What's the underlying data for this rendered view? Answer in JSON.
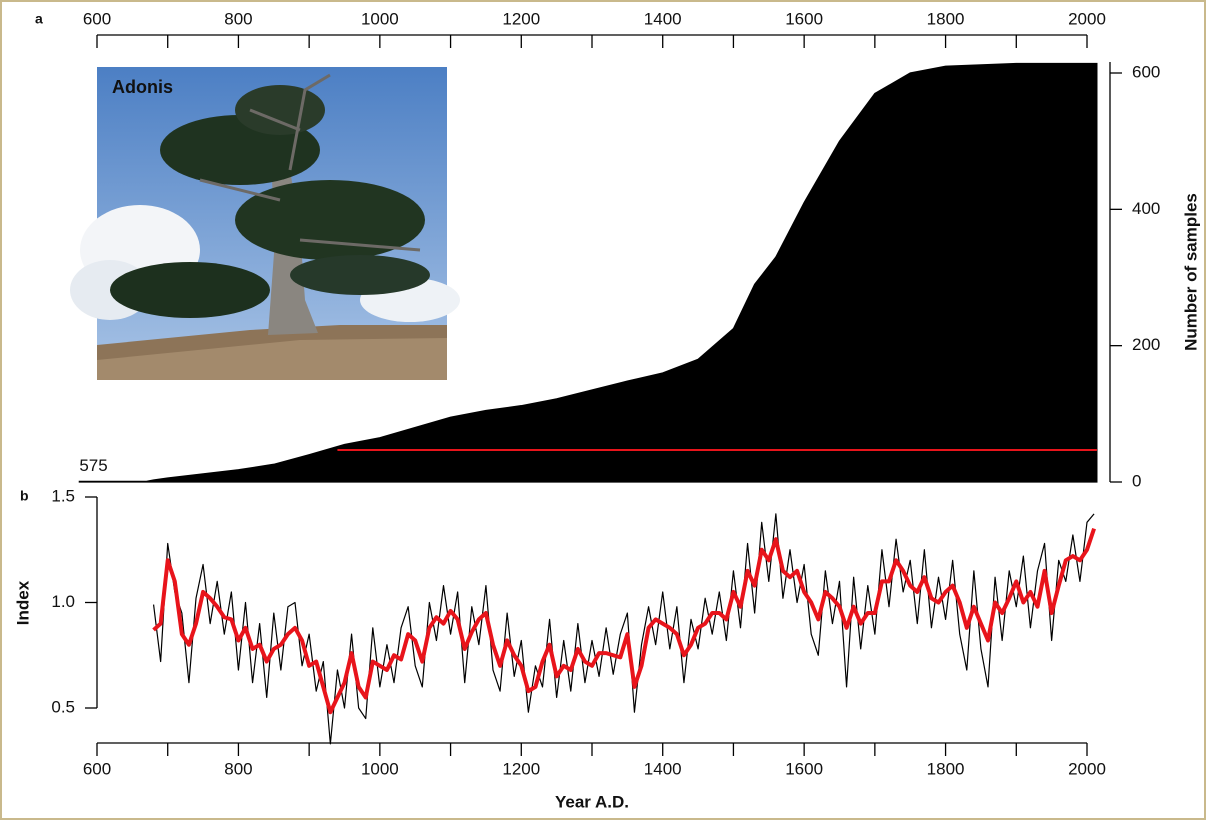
{
  "chart_data": [
    {
      "type": "area",
      "label": "a",
      "ylabel": "Number of samples",
      "color": "#000000",
      "xlim": [
        600,
        2000
      ],
      "xticks": [
        600,
        800,
        1000,
        1200,
        1400,
        1600,
        1800,
        2000
      ],
      "xminorticks": [
        700,
        900,
        1100,
        1300,
        1500,
        1700,
        1900
      ],
      "ylim": [
        0,
        600
      ],
      "yticks": [
        0,
        200,
        400,
        600
      ],
      "x": [
        575,
        670,
        680,
        700,
        750,
        800,
        850,
        900,
        950,
        1000,
        1050,
        1100,
        1150,
        1200,
        1250,
        1300,
        1350,
        1400,
        1450,
        1500,
        1530,
        1560,
        1600,
        1650,
        1700,
        1750,
        1800,
        1900,
        2014
      ],
      "values": [
        1,
        1,
        3,
        6,
        12,
        18,
        26,
        40,
        55,
        65,
        80,
        95,
        105,
        112,
        122,
        135,
        148,
        160,
        180,
        225,
        290,
        330,
        410,
        500,
        570,
        600,
        610,
        614,
        614
      ],
      "highlight": {
        "name": "Adonis",
        "x": [
          940,
          2014
        ],
        "value": 47,
        "color": "#e8141b"
      }
    },
    {
      "type": "line",
      "label": "b",
      "xlabel": "Year A.D.",
      "ylabel": "Index",
      "xlim": [
        600,
        2000
      ],
      "xticks": [
        600,
        800,
        1000,
        1200,
        1400,
        1600,
        1800,
        2000
      ],
      "xminorticks": [
        700,
        900,
        1100,
        1300,
        1500,
        1700,
        1900
      ],
      "ylim": [
        0.5,
        1.5
      ],
      "yticks": [
        0.5,
        {
          "value": 1,
          "label": "1.0"
        },
        1.5
      ],
      "x": [
        680,
        690,
        700,
        710,
        720,
        730,
        740,
        750,
        760,
        770,
        780,
        790,
        800,
        810,
        820,
        830,
        840,
        850,
        860,
        870,
        880,
        890,
        900,
        910,
        920,
        930,
        940,
        950,
        960,
        970,
        980,
        990,
        1000,
        1010,
        1020,
        1030,
        1040,
        1050,
        1060,
        1070,
        1080,
        1090,
        1100,
        1110,
        1120,
        1130,
        1140,
        1150,
        1160,
        1170,
        1180,
        1190,
        1200,
        1210,
        1220,
        1230,
        1240,
        1250,
        1260,
        1270,
        1280,
        1290,
        1300,
        1310,
        1320,
        1330,
        1340,
        1350,
        1360,
        1370,
        1380,
        1390,
        1400,
        1410,
        1420,
        1430,
        1440,
        1450,
        1460,
        1470,
        1480,
        1490,
        1500,
        1510,
        1520,
        1530,
        1540,
        1550,
        1560,
        1570,
        1580,
        1590,
        1600,
        1610,
        1620,
        1630,
        1640,
        1650,
        1660,
        1670,
        1680,
        1690,
        1700,
        1710,
        1720,
        1730,
        1740,
        1750,
        1760,
        1770,
        1780,
        1790,
        1800,
        1810,
        1820,
        1830,
        1840,
        1850,
        1860,
        1870,
        1880,
        1890,
        1900,
        1910,
        1920,
        1930,
        1940,
        1950,
        1960,
        1970,
        1980,
        1990,
        2000,
        2010
      ],
      "series": [
        {
          "color": "#000000",
          "values": [
            0.99,
            0.72,
            1.28,
            1.05,
            0.95,
            0.62,
            1.02,
            1.18,
            0.9,
            1.1,
            0.85,
            1.05,
            0.68,
            1.0,
            0.62,
            0.9,
            0.55,
            0.95,
            0.68,
            0.98,
            1.0,
            0.7,
            0.85,
            0.58,
            0.72,
            0.33,
            0.68,
            0.5,
            0.85,
            0.5,
            0.45,
            0.88,
            0.6,
            0.8,
            0.62,
            0.88,
            0.98,
            0.7,
            0.6,
            1.0,
            0.82,
            1.08,
            0.85,
            1.05,
            0.62,
            0.98,
            0.8,
            1.08,
            0.68,
            0.58,
            0.95,
            0.65,
            0.82,
            0.48,
            0.7,
            0.6,
            0.92,
            0.55,
            0.82,
            0.58,
            0.9,
            0.62,
            0.82,
            0.65,
            0.88,
            0.66,
            0.85,
            0.95,
            0.48,
            0.8,
            0.98,
            0.8,
            1.05,
            0.78,
            0.98,
            0.62,
            0.92,
            0.78,
            1.02,
            0.85,
            1.05,
            0.82,
            1.15,
            0.88,
            1.28,
            0.95,
            1.38,
            1.1,
            1.42,
            1.02,
            1.25,
            1.0,
            1.18,
            0.85,
            0.75,
            1.15,
            0.9,
            1.1,
            0.6,
            1.12,
            0.78,
            1.08,
            0.85,
            1.25,
            0.98,
            1.3,
            1.05,
            1.2,
            0.9,
            1.25,
            0.88,
            1.12,
            0.92,
            1.2,
            0.85,
            0.68,
            1.15,
            0.78,
            0.6,
            1.12,
            0.82,
            1.15,
            0.98,
            1.22,
            0.88,
            1.15,
            1.28,
            0.82,
            1.2,
            1.1,
            1.32,
            1.1,
            1.38,
            1.42
          ]
        },
        {
          "color": "#e8141b",
          "values": [
            0.87,
            0.9,
            1.2,
            1.1,
            0.85,
            0.8,
            0.9,
            1.05,
            1.02,
            0.98,
            0.93,
            0.92,
            0.82,
            0.88,
            0.78,
            0.8,
            0.72,
            0.78,
            0.8,
            0.85,
            0.88,
            0.82,
            0.7,
            0.72,
            0.6,
            0.48,
            0.55,
            0.62,
            0.76,
            0.6,
            0.55,
            0.72,
            0.7,
            0.68,
            0.75,
            0.73,
            0.85,
            0.82,
            0.72,
            0.88,
            0.93,
            0.9,
            0.96,
            0.92,
            0.78,
            0.86,
            0.92,
            0.95,
            0.8,
            0.7,
            0.82,
            0.75,
            0.7,
            0.58,
            0.6,
            0.72,
            0.8,
            0.65,
            0.7,
            0.68,
            0.78,
            0.72,
            0.7,
            0.76,
            0.76,
            0.75,
            0.74,
            0.85,
            0.6,
            0.7,
            0.88,
            0.92,
            0.9,
            0.88,
            0.85,
            0.75,
            0.8,
            0.88,
            0.9,
            0.95,
            0.95,
            0.92,
            1.05,
            0.98,
            1.15,
            1.08,
            1.25,
            1.2,
            1.3,
            1.15,
            1.12,
            1.15,
            1.05,
            1.0,
            0.92,
            1.05,
            1.02,
            0.98,
            0.88,
            0.98,
            0.9,
            0.95,
            0.95,
            1.1,
            1.1,
            1.2,
            1.15,
            1.08,
            1.05,
            1.12,
            1.02,
            1.0,
            1.05,
            1.08,
            1.0,
            0.88,
            0.98,
            0.9,
            0.82,
            1.0,
            0.95,
            1.02,
            1.1,
            1.0,
            1.05,
            0.98,
            1.15,
            0.95,
            1.08,
            1.2,
            1.22,
            1.2,
            1.25,
            1.35
          ]
        }
      ]
    }
  ]
}
